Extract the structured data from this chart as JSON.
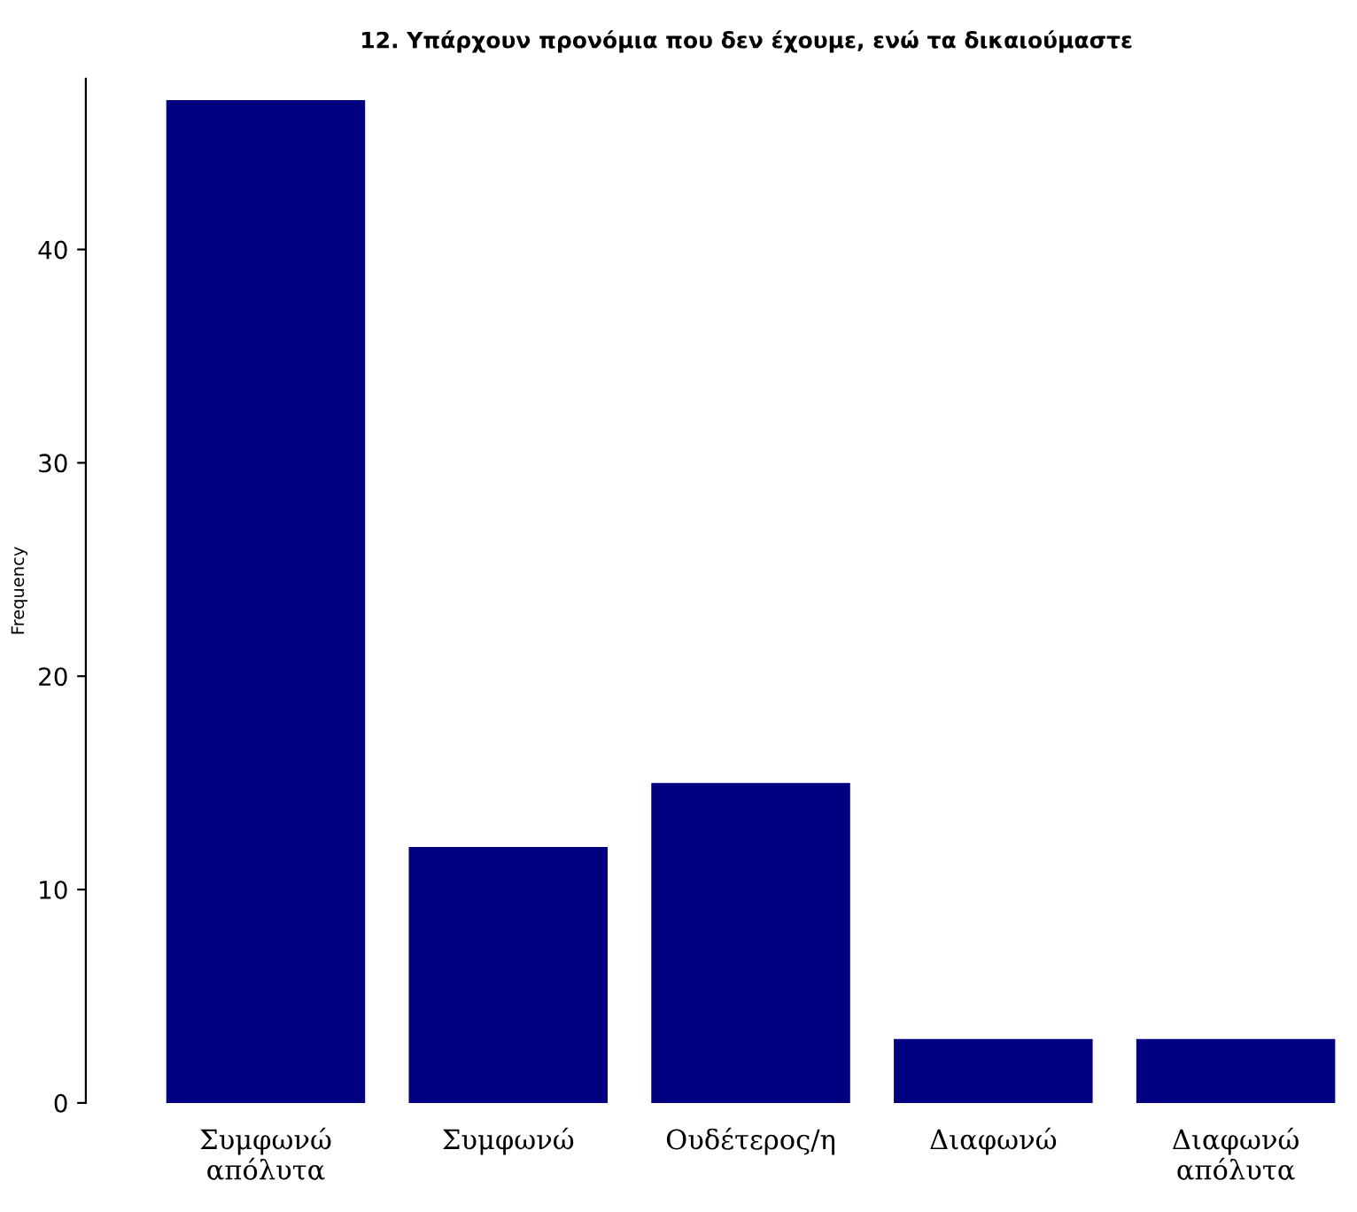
{
  "chart_data": {
    "type": "bar",
    "title": "12. Υπάρχουν προνόμια που δεν έχουμε, ενώ τα δικαιούμαστε",
    "ylabel": "Frequency",
    "categories": [
      "Συμφωνώ\nαπόλυτα",
      "Συμφωνώ",
      "Ουδέτερος/η",
      "Διαφωνώ",
      "Διαφωνώ\nαπόλυτα"
    ],
    "values": [
      47,
      12,
      15,
      3,
      3
    ],
    "color": "#000080",
    "ylim": [
      0,
      48
    ],
    "yticks": [
      0,
      10,
      20,
      30,
      40
    ],
    "grid": false,
    "legend": false
  }
}
